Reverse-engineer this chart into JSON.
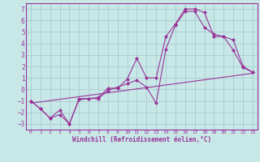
{
  "xlabel": "Windchill (Refroidissement éolien,°C)",
  "bg_color": "#c8e8e8",
  "line_color": "#993399",
  "grid_color": "#aacccc",
  "xlim": [
    -0.5,
    23.5
  ],
  "ylim": [
    -3.5,
    7.5
  ],
  "yticks": [
    -3,
    -2,
    -1,
    0,
    1,
    2,
    3,
    4,
    5,
    6,
    7
  ],
  "xticks": [
    0,
    1,
    2,
    3,
    4,
    5,
    6,
    7,
    8,
    9,
    10,
    11,
    12,
    13,
    14,
    15,
    16,
    17,
    18,
    19,
    20,
    21,
    22,
    23
  ],
  "line1_x": [
    0,
    1,
    2,
    3,
    4,
    5,
    6,
    7,
    8,
    9,
    10,
    11,
    12,
    13,
    14,
    15,
    16,
    17,
    18,
    19,
    20,
    21,
    22,
    23
  ],
  "line1_y": [
    -1,
    -1.7,
    -2.5,
    -2.2,
    -3.0,
    -0.9,
    -0.8,
    -0.7,
    0.1,
    0.1,
    0.9,
    2.7,
    1.0,
    1.0,
    4.6,
    5.7,
    7.0,
    7.0,
    6.7,
    4.6,
    4.6,
    3.4,
    1.9,
    1.5
  ],
  "line2_x": [
    0,
    1,
    2,
    3,
    4,
    5,
    6,
    7,
    8,
    9,
    10,
    11,
    12,
    13,
    14,
    15,
    16,
    17,
    18,
    19,
    20,
    21,
    22,
    23
  ],
  "line2_y": [
    -1,
    -1.7,
    -2.5,
    -1.8,
    -3.0,
    -0.8,
    -0.8,
    -0.8,
    -0.1,
    0.2,
    0.5,
    0.8,
    0.2,
    -1.2,
    3.5,
    5.6,
    6.8,
    6.8,
    5.4,
    4.8,
    4.6,
    4.3,
    2.0,
    1.5
  ],
  "line3_x": [
    0,
    23
  ],
  "line3_y": [
    -1.2,
    1.4
  ]
}
